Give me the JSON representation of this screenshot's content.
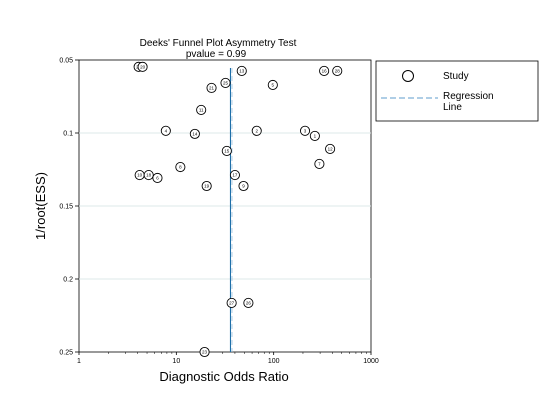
{
  "chart_data": {
    "type": "scatter",
    "title": "Deeks' Funnel Plot Asymmetry Test",
    "subtitle": "pvalue =    0.99",
    "xlabel": "Diagnostic Odds Ratio",
    "ylabel": "1/root(ESS)",
    "x_scale": "log",
    "xlim": [
      1,
      1000
    ],
    "x_ticks": [
      1,
      10,
      100,
      1000
    ],
    "x_tick_labels": [
      "1",
      "10",
      "100",
      "1000"
    ],
    "ylim": [
      0.05,
      0.25
    ],
    "y_reversed": true,
    "y_ticks": [
      0.05,
      0.1,
      0.15,
      0.2,
      0.25
    ],
    "y_tick_labels": [
      "0.05",
      "0.1",
      "0.15",
      "0.2",
      "0.25"
    ],
    "grid": "horizontal",
    "legend": {
      "position": "right",
      "entries": [
        "Study",
        "Regression\nLine"
      ]
    },
    "colors": {
      "regression": "#1f6fa8",
      "grid": "#dde8e8",
      "points": "#000000"
    },
    "regression_line": {
      "x_at_top": 36,
      "x_at_bottom": 36
    },
    "points": [
      {
        "label": "24",
        "x": 4.1,
        "y": 0.0547
      },
      {
        "label": "20",
        "x": 4.5,
        "y": 0.0547
      },
      {
        "label": "13",
        "x": 47,
        "y": 0.0575
      },
      {
        "label": "16",
        "x": 330,
        "y": 0.0575
      },
      {
        "label": "28",
        "x": 450,
        "y": 0.0575
      },
      {
        "label": "25",
        "x": 32,
        "y": 0.0657
      },
      {
        "label": "5",
        "x": 98,
        "y": 0.0671
      },
      {
        "label": "21",
        "x": 23,
        "y": 0.0691
      },
      {
        "label": "11",
        "x": 18,
        "y": 0.0842
      },
      {
        "label": "4",
        "x": 7.8,
        "y": 0.0985
      },
      {
        "label": "14",
        "x": 15.5,
        "y": 0.1006
      },
      {
        "label": "2",
        "x": 67,
        "y": 0.0985
      },
      {
        "label": "3",
        "x": 210,
        "y": 0.0985
      },
      {
        "label": "1",
        "x": 265,
        "y": 0.102
      },
      {
        "label": "12",
        "x": 380,
        "y": 0.1109
      },
      {
        "label": "15",
        "x": 33,
        "y": 0.1123
      },
      {
        "label": "7",
        "x": 295,
        "y": 0.1212
      },
      {
        "label": "8",
        "x": 11,
        "y": 0.1233
      },
      {
        "label": "17",
        "x": 40,
        "y": 0.1288
      },
      {
        "label": "10",
        "x": 4.2,
        "y": 0.1288
      },
      {
        "label": "18",
        "x": 5.2,
        "y": 0.1288
      },
      {
        "label": "6",
        "x": 6.4,
        "y": 0.1308
      },
      {
        "label": "19",
        "x": 20.5,
        "y": 0.1363
      },
      {
        "label": "9",
        "x": 49,
        "y": 0.1363
      },
      {
        "label": "27",
        "x": 37,
        "y": 0.2164
      },
      {
        "label": "26",
        "x": 55,
        "y": 0.2164
      },
      {
        "label": "23",
        "x": 19.5,
        "y": 0.25
      }
    ]
  }
}
